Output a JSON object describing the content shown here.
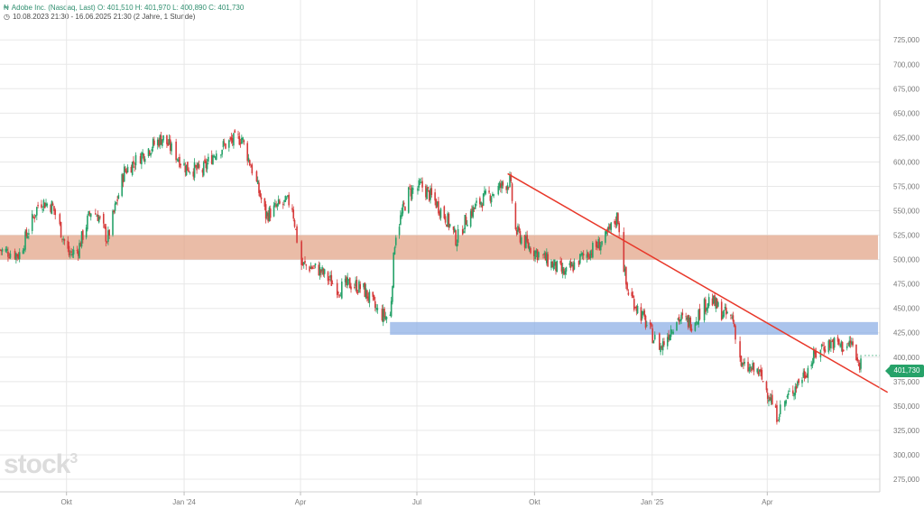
{
  "header": {
    "line1": "Adobe Inc. (Nasdaq, Last)  O: 401,510  H: 401,970  L: 400,890  C: 401,730",
    "line2": "10.08.2023 21:30 - 16.06.2025 21:30  (2 Jahre, 1 Stunde)"
  },
  "logo": {
    "text": "stock",
    "sup": "3"
  },
  "last_price_label": "401,730",
  "colors": {
    "up": "#26a269",
    "down": "#d63a3a",
    "grid": "#e8e8e8",
    "resistance_zone": "#e3a58a",
    "support_zone": "#8fb0e6",
    "trendline": "#e8382a"
  },
  "chart_data": {
    "type": "candlestick",
    "title": "Adobe Inc. (Nasdaq, Last)",
    "ylim": [
      275,
      740
    ],
    "yticks": [
      275,
      300,
      325,
      350,
      375,
      400,
      425,
      450,
      475,
      500,
      525,
      550,
      575,
      600,
      625,
      650,
      675,
      700,
      725
    ],
    "ytick_labels": [
      "275,000",
      "300,000",
      "325,000",
      "350,000",
      "375,000",
      "400,000",
      "425,000",
      "450,000",
      "475,000",
      "500,000",
      "525,000",
      "550,000",
      "575,000",
      "600,000",
      "625,000",
      "650,000",
      "675,000",
      "700,000",
      "725,000"
    ],
    "xlabels": [
      "Okt",
      "Jan '24",
      "Apr",
      "Jul",
      "Okt",
      "Jan '25",
      "Apr"
    ],
    "xlabel_dates": [
      "2023-10-01",
      "2024-01-01",
      "2024-04-01",
      "2024-07-01",
      "2024-10-01",
      "2025-01-01",
      "2025-04-01"
    ],
    "date_range": [
      "2023-08-10",
      "2025-06-16"
    ],
    "grid": true,
    "close_path": [
      [
        "2023-08-10",
        510
      ],
      [
        "2023-08-25",
        505
      ],
      [
        "2023-09-10",
        560
      ],
      [
        "2023-09-20",
        555
      ],
      [
        "2023-10-03",
        505
      ],
      [
        "2023-10-10",
        510
      ],
      [
        "2023-10-20",
        550
      ],
      [
        "2023-10-26",
        545
      ],
      [
        "2023-11-02",
        520
      ],
      [
        "2023-11-15",
        590
      ],
      [
        "2023-12-01",
        610
      ],
      [
        "2023-12-15",
        625
      ],
      [
        "2024-01-02",
        595
      ],
      [
        "2024-01-15",
        590
      ],
      [
        "2024-01-25",
        610
      ],
      [
        "2024-02-05",
        620
      ],
      [
        "2024-02-15",
        625
      ],
      [
        "2024-02-25",
        585
      ],
      [
        "2024-03-05",
        545
      ],
      [
        "2024-03-15",
        555
      ],
      [
        "2024-03-25",
        560
      ],
      [
        "2024-04-01",
        495
      ],
      [
        "2024-04-15",
        490
      ],
      [
        "2024-05-01",
        470
      ],
      [
        "2024-05-10",
        475
      ],
      [
        "2024-05-20",
        470
      ],
      [
        "2024-06-01",
        445
      ],
      [
        "2024-06-10",
        440
      ],
      [
        "2024-06-14",
        525
      ],
      [
        "2024-06-25",
        570
      ],
      [
        "2024-07-05",
        575
      ],
      [
        "2024-07-15",
        560
      ],
      [
        "2024-07-25",
        540
      ],
      [
        "2024-08-01",
        520
      ],
      [
        "2024-08-10",
        545
      ],
      [
        "2024-08-20",
        560
      ],
      [
        "2024-09-05",
        575
      ],
      [
        "2024-09-12",
        580
      ],
      [
        "2024-09-16",
        530
      ],
      [
        "2024-09-25",
        515
      ],
      [
        "2024-10-10",
        500
      ],
      [
        "2024-10-25",
        485
      ],
      [
        "2024-11-05",
        500
      ],
      [
        "2024-11-15",
        510
      ],
      [
        "2024-11-25",
        520
      ],
      [
        "2024-12-05",
        545
      ],
      [
        "2024-12-12",
        470
      ],
      [
        "2024-12-25",
        440
      ],
      [
        "2025-01-02",
        420
      ],
      [
        "2025-01-08",
        410
      ],
      [
        "2025-01-20",
        440
      ],
      [
        "2025-02-01",
        435
      ],
      [
        "2025-02-15",
        460
      ],
      [
        "2025-02-25",
        445
      ],
      [
        "2025-03-05",
        440
      ],
      [
        "2025-03-12",
        390
      ],
      [
        "2025-03-25",
        385
      ],
      [
        "2025-04-03",
        360
      ],
      [
        "2025-04-08",
        340
      ],
      [
        "2025-04-20",
        365
      ],
      [
        "2025-05-01",
        385
      ],
      [
        "2025-05-12",
        410
      ],
      [
        "2025-05-22",
        415
      ],
      [
        "2025-06-01",
        410
      ],
      [
        "2025-06-06",
        415
      ],
      [
        "2025-06-11",
        390
      ],
      [
        "2025-06-16",
        401.73
      ]
    ],
    "annotations": [
      {
        "type": "zone",
        "name": "resistance",
        "y": [
          500,
          525
        ],
        "x": [
          "2023-08-10",
          "2025-06-16"
        ]
      },
      {
        "type": "zone",
        "name": "support",
        "y": [
          423,
          436
        ],
        "x": [
          "2024-06-10",
          "2025-06-16"
        ]
      },
      {
        "type": "trendline",
        "from": [
          "2024-09-10",
          588
        ],
        "to": [
          "2025-06-20",
          364
        ]
      }
    ],
    "last_close": 401.73
  }
}
